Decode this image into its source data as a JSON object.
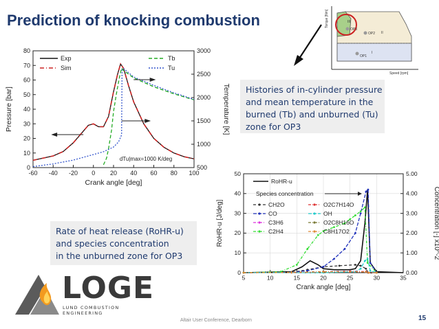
{
  "slide": {
    "title": "Prediction of knocking combustion",
    "footer": "Altair User Conference, Dearborn",
    "page_number": "15",
    "accent_color": "#1f3a6e"
  },
  "callouts": {
    "pressure": [
      "Histories of in-cylinder pressure",
      "and mean temperature in the",
      "burned (Tb) and unburned (Tu)",
      "zone for OP3"
    ],
    "rohr": [
      "Rate of heat release (RoHR-u)",
      "and species concentration",
      "in the unburned zone for OP3"
    ]
  },
  "logo": {
    "name": "LOGE",
    "subtitle": "LUND COMBUSTION ENGINEERING"
  },
  "chart_data": [
    {
      "id": "pressure-temperature",
      "type": "line",
      "xlabel": "Crank angle [deg]",
      "ylabel": "Pressure [bar]",
      "y2label": "Temperature [K]",
      "xlim": [
        -60,
        100
      ],
      "ylim": [
        0,
        80
      ],
      "y2lim": [
        500,
        3000
      ],
      "xticks": [
        "-60",
        "-40",
        "-20",
        "0",
        "20",
        "40",
        "60",
        "80",
        "100"
      ],
      "yticks": [
        "0",
        "10",
        "20",
        "30",
        "40",
        "50",
        "60",
        "70",
        "80"
      ],
      "y2ticks": [
        "500",
        "1000",
        "1500",
        "2000",
        "2500",
        "3000"
      ],
      "annotation": "dTu|max=1000 K/deg",
      "series": [
        {
          "name": "Exp",
          "axis": "left",
          "color": "#111111",
          "dash": "solid",
          "x": [
            -60,
            -40,
            -30,
            -20,
            -10,
            -5,
            0,
            5,
            10,
            15,
            20,
            24,
            27,
            30,
            35,
            40,
            50,
            60,
            70,
            80,
            90,
            100
          ],
          "y": [
            5,
            8,
            11,
            17,
            25,
            29,
            30,
            28,
            28,
            35,
            52,
            64,
            71,
            68,
            56,
            45,
            30,
            20,
            14,
            10,
            7.5,
            6
          ]
        },
        {
          "name": "Sim",
          "axis": "left",
          "color": "#cc2222",
          "dash": "6,3,1,3",
          "x": [
            -60,
            -40,
            -30,
            -20,
            -10,
            -5,
            0,
            5,
            10,
            15,
            20,
            24,
            27,
            30,
            35,
            40,
            50,
            60,
            70,
            80,
            90,
            100
          ],
          "y": [
            5,
            8,
            11,
            17,
            25,
            29,
            30,
            28,
            28,
            35,
            52,
            64,
            71,
            68,
            56,
            45,
            30,
            20,
            14,
            10,
            7.5,
            6
          ]
        },
        {
          "name": "Tb",
          "axis": "right",
          "color": "#22aa22",
          "dash": "5,3",
          "x": [
            10,
            13,
            15,
            18,
            20,
            23,
            26,
            28,
            30,
            40,
            60,
            80,
            100
          ],
          "y": [
            560,
            700,
            900,
            1300,
            1700,
            2100,
            2450,
            2630,
            2580,
            2420,
            2230,
            2080,
            1950
          ]
        },
        {
          "name": "Tu",
          "axis": "right",
          "color": "#3355cc",
          "dash": "2,2",
          "x": [
            -60,
            -40,
            -20,
            0,
            10,
            20,
            25,
            28,
            28.5,
            30,
            40,
            60,
            80,
            100
          ],
          "y": [
            520,
            580,
            660,
            780,
            840,
            940,
            1050,
            1200,
            2600,
            2620,
            2440,
            2260,
            2100,
            1960
          ]
        }
      ]
    },
    {
      "id": "rohr-species",
      "type": "line",
      "xlabel": "Crank angle [deg]",
      "ylabel": "RoHR-u [J/deg]",
      "y2label": "Concentration [-] x10^-2",
      "xlim": [
        5,
        35
      ],
      "ylim": [
        0,
        50
      ],
      "y2lim": [
        0,
        5
      ],
      "xticks": [
        "5",
        "10",
        "15",
        "20",
        "25",
        "30",
        "35"
      ],
      "yticks": [
        "0",
        "10",
        "20",
        "30",
        "40",
        "50"
      ],
      "y2ticks": [
        "0.00",
        "1.00",
        "2.00",
        "3.00",
        "4.00",
        "5.00"
      ],
      "annotation": "Species concentration",
      "series": [
        {
          "name": "RoHR-u",
          "axis": "left",
          "color": "#111111",
          "dash": "solid",
          "x": [
            5,
            14,
            16,
            17.5,
            19,
            20,
            22,
            25,
            26,
            27,
            27.8,
            28.3,
            28.8,
            30,
            35
          ],
          "y": [
            0,
            0.5,
            3,
            6,
            4,
            2,
            1.5,
            1.5,
            2,
            6,
            25,
            42,
            5,
            0.5,
            0
          ]
        },
        {
          "name": "CH2O",
          "axis": "right",
          "color": "#333333",
          "dash": "4,3",
          "x": [
            5,
            14,
            17,
            20,
            23,
            26,
            27,
            28,
            28.4,
            29,
            30
          ],
          "y": [
            0,
            0.02,
            0.15,
            0.3,
            0.35,
            0.4,
            0.35,
            0.2,
            0,
            0,
            0
          ]
        },
        {
          "name": "O2C7H14O",
          "axis": "right",
          "color": "#dd3333",
          "dash": "4,2,1,2",
          "x": [
            5,
            14,
            17,
            20,
            25,
            28,
            28.5,
            30
          ],
          "y": [
            0,
            0.01,
            0.03,
            0.04,
            0.05,
            0.03,
            0,
            0
          ]
        },
        {
          "name": "CO",
          "axis": "right",
          "color": "#2233bb",
          "dash": "5,2",
          "x": [
            5,
            14,
            17,
            20,
            22,
            24,
            26,
            27,
            28,
            28.4,
            28.8,
            30
          ],
          "y": [
            0,
            0.02,
            0.1,
            0.3,
            0.7,
            1.2,
            2,
            3,
            4.1,
            4.2,
            0.5,
            0
          ]
        },
        {
          "name": "OH",
          "axis": "right",
          "color": "#22cccc",
          "dash": "5,2",
          "x": [
            5,
            20,
            26,
            27,
            27.8,
            28.3,
            28.8,
            30
          ],
          "y": [
            0,
            0,
            0.05,
            0.2,
            0.6,
            0.7,
            0.1,
            0
          ]
        },
        {
          "name": "C3H6",
          "axis": "right",
          "color": "#dd33dd",
          "dash": "4,2,1,2",
          "x": [
            5,
            14,
            20,
            25,
            28,
            28.5,
            30
          ],
          "y": [
            0,
            0.01,
            0.05,
            0.08,
            0.06,
            0,
            0
          ]
        },
        {
          "name": "O2C8H16O",
          "axis": "right",
          "color": "#777733",
          "dash": "4,2,1,2",
          "x": [
            5,
            14,
            20,
            25,
            28,
            28.5,
            30
          ],
          "y": [
            0,
            0.02,
            0.05,
            0.06,
            0.04,
            0,
            0
          ]
        },
        {
          "name": "C2H4",
          "axis": "right",
          "color": "#33dd33",
          "dash": "4,2,1,2",
          "x": [
            5,
            12,
            15,
            17,
            19,
            20,
            22,
            24,
            25,
            26,
            27,
            27.8,
            28.3,
            30
          ],
          "y": [
            0,
            0.05,
            0.4,
            1.2,
            1.9,
            2.1,
            2.3,
            2.5,
            2.7,
            2.9,
            3.1,
            3.3,
            0.5,
            0
          ]
        },
        {
          "name": "C8H17O2",
          "axis": "right",
          "color": "#dd8833",
          "dash": "4,2,1,2",
          "x": [
            5,
            14,
            20,
            25,
            28,
            28.5,
            30
          ],
          "y": [
            0,
            0.01,
            0.04,
            0.06,
            0.05,
            0,
            0
          ]
        }
      ]
    },
    {
      "id": "operating-map",
      "type": "area",
      "xlabel": "Speed [rpm]",
      "ylabel": "Torque [Nm]",
      "regions": [
        "III",
        "II",
        "I"
      ],
      "points": [
        "OP1",
        "OP2",
        "OP3"
      ]
    }
  ]
}
